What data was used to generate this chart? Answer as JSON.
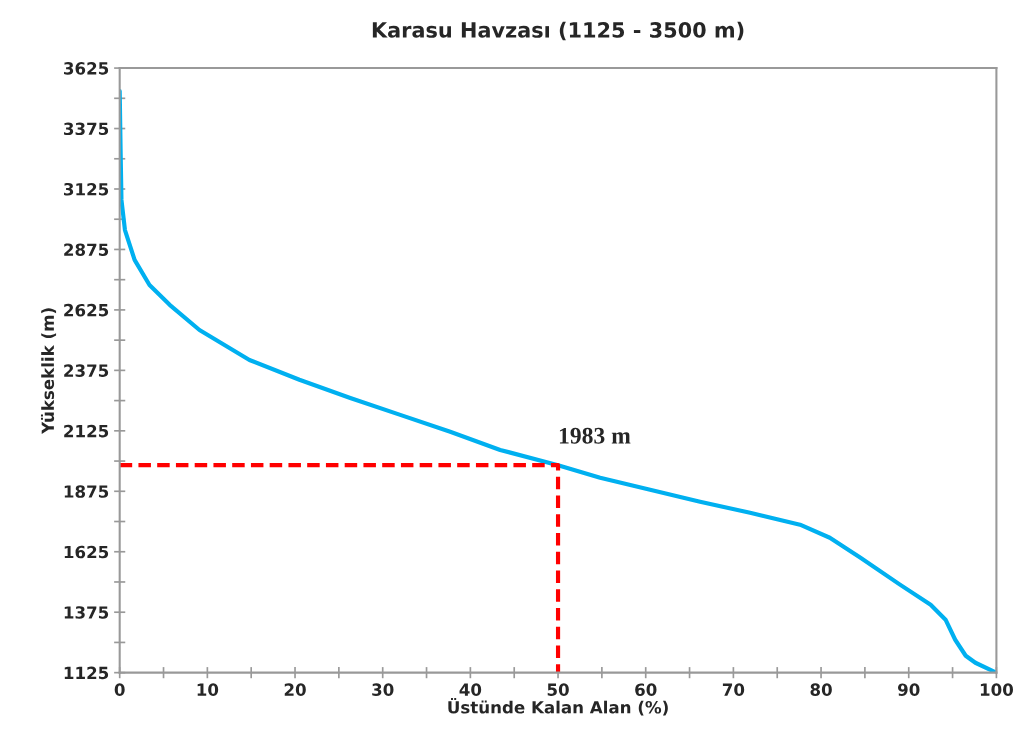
{
  "chart_data": {
    "type": "line",
    "title": "Karasu Havzası (1125 - 3500 m)",
    "xlabel": "Üstünde Kalan Alan (%)",
    "ylabel": "Yükseklik (m)",
    "series": [
      {
        "color": "#00b0f0",
        "x": [
          0,
          0.1,
          0.2,
          0.6,
          1.7,
          3.4,
          5.7,
          9.1,
          14.8,
          20.5,
          26.3,
          32,
          37.7,
          43.4,
          50,
          54.8,
          60.5,
          66.2,
          71.9,
          77.6,
          81,
          84.5,
          89,
          92.5,
          94.2,
          95.3,
          96.5,
          97.6,
          100
        ],
        "values": [
          3530,
          3290,
          3080,
          2955,
          2832,
          2728,
          2646,
          2542,
          2418,
          2336,
          2261,
          2191,
          2121,
          2046,
          1983,
          1931,
          1881,
          1832,
          1786,
          1737,
          1683,
          1600,
          1489,
          1406,
          1344,
          1261,
          1195,
          1166,
          1125
        ]
      },
      {
        "color": "#ff0000",
        "line_style": "dashed",
        "x": [
          0,
          50,
          50
        ],
        "values": [
          1983,
          1983,
          1125
        ]
      }
    ],
    "annotations": [
      {
        "text": "1983 m",
        "x": 50,
        "y": 1983
      }
    ],
    "xlim": [
      0,
      100
    ],
    "ylim": [
      1125,
      3625
    ],
    "xticks": [
      0,
      {
        "value": 5,
        "label": null
      },
      10,
      {
        "value": 15,
        "label": null
      },
      20,
      {
        "value": 25,
        "label": null
      },
      30,
      {
        "value": 35,
        "label": null
      },
      40,
      {
        "value": 45,
        "label": null
      },
      50,
      {
        "value": 55,
        "label": null
      },
      60,
      {
        "value": 65,
        "label": null
      },
      70,
      {
        "value": 75,
        "label": null
      },
      80,
      {
        "value": 85,
        "label": null
      },
      90,
      {
        "value": 95,
        "label": null
      },
      100
    ],
    "yticks": [
      1125,
      {
        "value": 1250,
        "label": null
      },
      1375,
      {
        "value": 1500,
        "label": null
      },
      1625,
      {
        "value": 1750,
        "label": null
      },
      1875,
      {
        "value": 2000,
        "label": null
      },
      2125,
      {
        "value": 2250,
        "label": null
      },
      2375,
      {
        "value": 2500,
        "label": null
      },
      2625,
      {
        "value": 2750,
        "label": null
      },
      2875,
      {
        "value": 3000,
        "label": null
      },
      3125,
      {
        "value": 3250,
        "label": null
      },
      3375,
      {
        "value": 3500,
        "label": null
      },
      3625
    ],
    "grid": false,
    "legend": false
  }
}
